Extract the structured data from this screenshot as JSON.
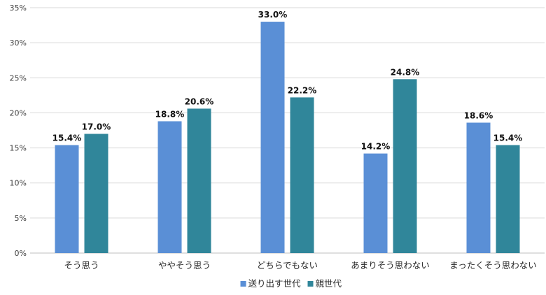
{
  "chart_data": {
    "type": "bar",
    "categories": [
      "そう思う",
      "ややそう思う",
      "どちらでもない",
      "あまりそう思わない",
      "まったくそう思わない"
    ],
    "series": [
      {
        "name": "送り出す世代",
        "values": [
          15.4,
          18.8,
          33.0,
          14.2,
          18.6
        ],
        "color": "#5a8fd6"
      },
      {
        "name": "親世代",
        "values": [
          17.0,
          20.6,
          22.2,
          24.8,
          15.4
        ],
        "color": "#30869a"
      }
    ],
    "data_labels": [
      [
        "15.4%",
        "18.8%",
        "33.0%",
        "14.2%",
        "18.6%"
      ],
      [
        "17.0%",
        "20.6%",
        "22.2%",
        "24.8%",
        "15.4%"
      ]
    ],
    "y_ticks": [
      "0%",
      "5%",
      "10%",
      "15%",
      "20%",
      "25%",
      "30%",
      "35%"
    ],
    "ylim": [
      0,
      35
    ],
    "y_step": 5,
    "grid": true,
    "legend_position": "bottom",
    "title": "",
    "xlabel": "",
    "ylabel": ""
  }
}
